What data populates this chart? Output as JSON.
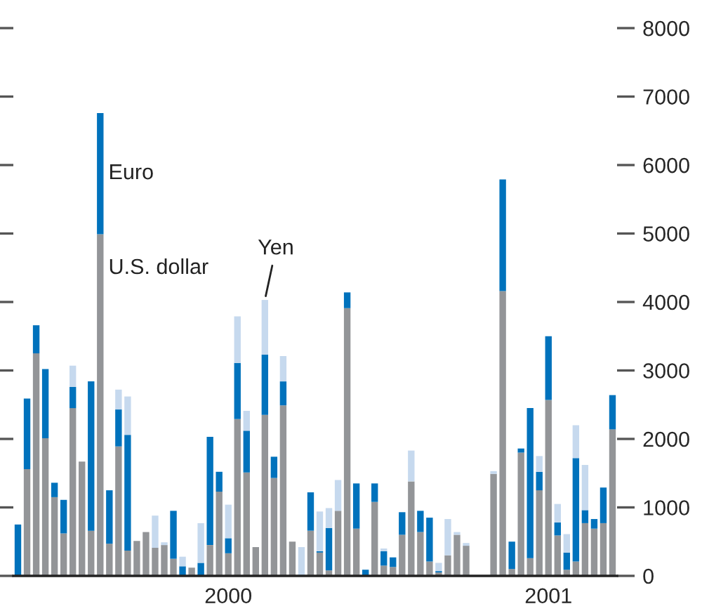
{
  "chart_data": {
    "type": "bar",
    "stacked": true,
    "categories": [
      null,
      null,
      null,
      null,
      null,
      null,
      null,
      null,
      null,
      null,
      null,
      null,
      null,
      null,
      null,
      null,
      null,
      null,
      null,
      null,
      null,
      null,
      null,
      "2000",
      null,
      null,
      null,
      null,
      null,
      null,
      null,
      null,
      null,
      null,
      null,
      null,
      null,
      null,
      null,
      null,
      null,
      null,
      null,
      null,
      null,
      null,
      null,
      null,
      null,
      null,
      null,
      null,
      null,
      null,
      null,
      null,
      null,
      null,
      "2001",
      null,
      null,
      null,
      null,
      null,
      null,
      null
    ],
    "series": [
      {
        "name": "U.S. dollar",
        "color": "#939598",
        "values": [
          0,
          1560,
          3250,
          2010,
          1150,
          620,
          2450,
          1670,
          660,
          4990,
          470,
          1890,
          370,
          510,
          640,
          410,
          450,
          250,
          0,
          120,
          0,
          450,
          1230,
          330,
          2290,
          1510,
          420,
          2350,
          1430,
          2490,
          500,
          0,
          660,
          340,
          80,
          950,
          3910,
          690,
          0,
          1080,
          150,
          130,
          600,
          1380,
          640,
          210,
          50,
          300,
          600,
          440,
          0,
          0,
          1490,
          4160,
          100,
          1800,
          260,
          1250,
          2570,
          590,
          90,
          210,
          770,
          690,
          770,
          2140
        ]
      },
      {
        "name": "Euro",
        "color": "#0072bc",
        "values": [
          750,
          1030,
          410,
          1010,
          210,
          490,
          310,
          0,
          2180,
          1770,
          780,
          540,
          1690,
          0,
          0,
          0,
          0,
          700,
          140,
          0,
          190,
          1580,
          290,
          220,
          820,
          610,
          0,
          880,
          310,
          350,
          0,
          0,
          560,
          20,
          620,
          0,
          230,
          660,
          90,
          270,
          210,
          140,
          330,
          0,
          310,
          640,
          20,
          0,
          0,
          0,
          0,
          0,
          0,
          1630,
          400,
          60,
          2190,
          270,
          930,
          190,
          250,
          1510,
          190,
          140,
          520,
          500
        ]
      },
      {
        "name": "Yen",
        "color": "#c6d9ee",
        "values": [
          0,
          0,
          0,
          0,
          0,
          0,
          310,
          0,
          0,
          0,
          0,
          290,
          560,
          0,
          0,
          470,
          40,
          0,
          140,
          0,
          580,
          0,
          0,
          490,
          680,
          290,
          0,
          800,
          0,
          370,
          0,
          420,
          0,
          580,
          290,
          450,
          0,
          0,
          0,
          0,
          40,
          0,
          0,
          450,
          0,
          0,
          120,
          530,
          40,
          40,
          0,
          0,
          40,
          0,
          0,
          0,
          0,
          230,
          0,
          270,
          270,
          480,
          660,
          0,
          0,
          0
        ]
      }
    ],
    "ylim": [
      0,
      8000
    ],
    "yticks": [
      0,
      1000,
      2000,
      3000,
      4000,
      5000,
      6000,
      7000,
      8000
    ],
    "grid": false,
    "legend": false
  }
}
